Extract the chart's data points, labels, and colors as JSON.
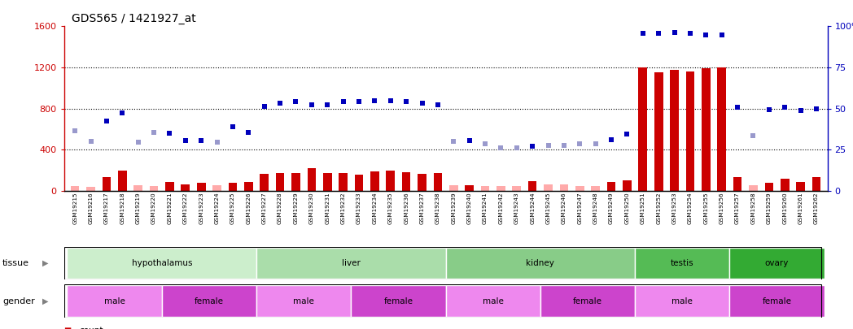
{
  "title": "GDS565 / 1421927_at",
  "samples": [
    "GSM19215",
    "GSM19216",
    "GSM19217",
    "GSM19218",
    "GSM19219",
    "GSM19220",
    "GSM19221",
    "GSM19222",
    "GSM19223",
    "GSM19224",
    "GSM19225",
    "GSM19226",
    "GSM19227",
    "GSM19228",
    "GSM19229",
    "GSM19230",
    "GSM19231",
    "GSM19232",
    "GSM19233",
    "GSM19234",
    "GSM19235",
    "GSM19236",
    "GSM19237",
    "GSM19238",
    "GSM19239",
    "GSM19240",
    "GSM19241",
    "GSM19242",
    "GSM19243",
    "GSM19244",
    "GSM19245",
    "GSM19246",
    "GSM19247",
    "GSM19248",
    "GSM19249",
    "GSM19250",
    "GSM19251",
    "GSM19252",
    "GSM19253",
    "GSM19254",
    "GSM19255",
    "GSM19256",
    "GSM19257",
    "GSM19258",
    "GSM19259",
    "GSM19260",
    "GSM19261",
    "GSM19262"
  ],
  "count_values": [
    50,
    40,
    130,
    200,
    55,
    50,
    90,
    65,
    75,
    55,
    80,
    90,
    165,
    175,
    175,
    220,
    175,
    175,
    155,
    185,
    195,
    180,
    165,
    170,
    55,
    55,
    50,
    50,
    50,
    95,
    60,
    60,
    50,
    50,
    90,
    100,
    1200,
    1150,
    1180,
    1160,
    1190,
    1200,
    130,
    55,
    80,
    120,
    90,
    130
  ],
  "count_absent": [
    true,
    true,
    false,
    false,
    true,
    true,
    false,
    false,
    false,
    true,
    false,
    false,
    false,
    false,
    false,
    false,
    false,
    false,
    false,
    false,
    false,
    false,
    false,
    false,
    true,
    false,
    true,
    true,
    true,
    false,
    true,
    true,
    true,
    true,
    false,
    false,
    false,
    false,
    false,
    false,
    false,
    false,
    false,
    true,
    false,
    false,
    false,
    false
  ],
  "rank_values": [
    580,
    480,
    680,
    760,
    470,
    570,
    560,
    490,
    490,
    470,
    620,
    570,
    820,
    850,
    870,
    840,
    840,
    870,
    870,
    880,
    880,
    870,
    850,
    840,
    480,
    490,
    460,
    420,
    420,
    430,
    440,
    440,
    460,
    460,
    500,
    550,
    1530,
    1530,
    1540,
    1530,
    1520,
    1520,
    810,
    540,
    790,
    810,
    780,
    800
  ],
  "rank_absent": [
    true,
    true,
    false,
    false,
    true,
    true,
    false,
    false,
    false,
    true,
    false,
    false,
    false,
    false,
    false,
    false,
    false,
    false,
    false,
    false,
    false,
    false,
    false,
    false,
    true,
    false,
    true,
    true,
    true,
    false,
    true,
    true,
    true,
    true,
    false,
    false,
    false,
    false,
    false,
    false,
    false,
    false,
    false,
    true,
    false,
    false,
    false,
    false
  ],
  "tissues": [
    {
      "label": "hypothalamus",
      "start": 0,
      "end": 11,
      "color": "#cceecc"
    },
    {
      "label": "liver",
      "start": 12,
      "end": 23,
      "color": "#aaddaa"
    },
    {
      "label": "kidney",
      "start": 24,
      "end": 35,
      "color": "#88cc88"
    },
    {
      "label": "testis",
      "start": 36,
      "end": 41,
      "color": "#55bb55"
    },
    {
      "label": "ovary",
      "start": 42,
      "end": 47,
      "color": "#33aa33"
    }
  ],
  "genders": [
    {
      "label": "male",
      "start": 0,
      "end": 5,
      "color": "#ee88ee"
    },
    {
      "label": "female",
      "start": 6,
      "end": 11,
      "color": "#cc44cc"
    },
    {
      "label": "male",
      "start": 12,
      "end": 17,
      "color": "#ee88ee"
    },
    {
      "label": "female",
      "start": 18,
      "end": 23,
      "color": "#cc44cc"
    },
    {
      "label": "male",
      "start": 24,
      "end": 29,
      "color": "#ee88ee"
    },
    {
      "label": "female",
      "start": 30,
      "end": 35,
      "color": "#cc44cc"
    },
    {
      "label": "male",
      "start": 36,
      "end": 41,
      "color": "#ee88ee"
    },
    {
      "label": "female",
      "start": 42,
      "end": 47,
      "color": "#cc44cc"
    }
  ],
  "ylim_left": [
    0,
    1600
  ],
  "ylim_right": [
    0,
    100
  ],
  "yticks_left": [
    0,
    400,
    800,
    1200,
    1600
  ],
  "yticks_right": [
    0,
    25,
    50,
    75,
    100
  ],
  "color_count_present": "#cc0000",
  "color_count_absent": "#ffaaaa",
  "color_rank_present": "#0000bb",
  "color_rank_absent": "#9999cc",
  "color_left_axis": "#cc0000",
  "color_right_axis": "#0000bb",
  "bar_width": 0.55
}
